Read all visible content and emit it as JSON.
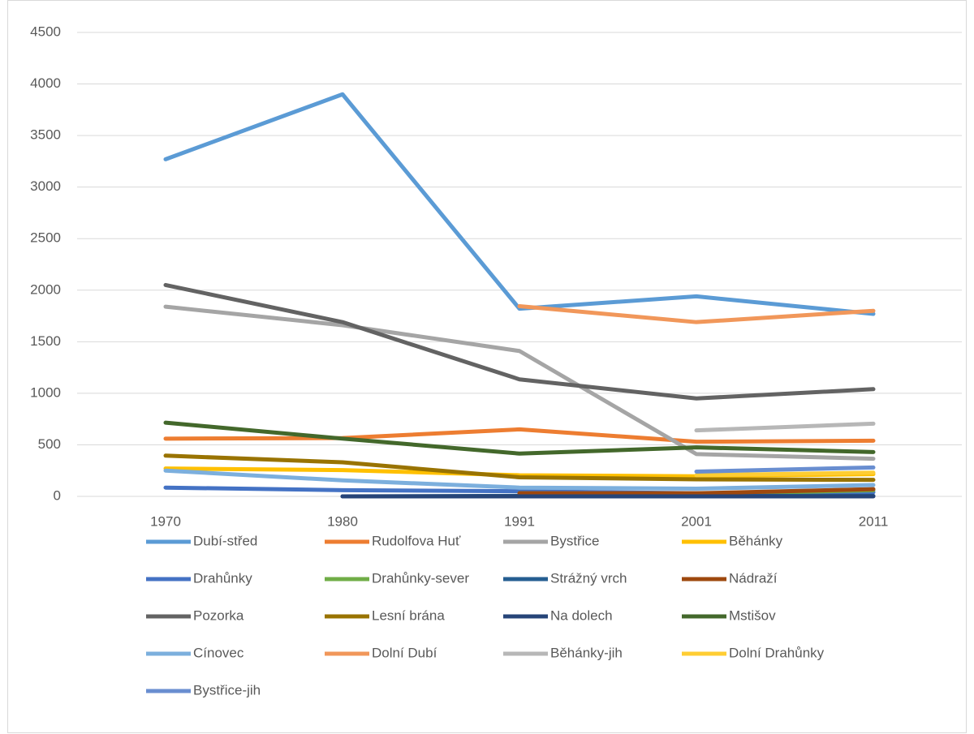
{
  "chart_data": {
    "type": "line",
    "categories": [
      "1970",
      "1980",
      "1991",
      "2001",
      "2011"
    ],
    "ylim": [
      0,
      4500
    ],
    "yticks": [
      0,
      500,
      1000,
      1500,
      2000,
      2500,
      3000,
      3500,
      4000,
      4500
    ],
    "grid": true,
    "legend": "bottom",
    "series": [
      {
        "name": "Dubí-střed",
        "color": "#5B9BD5",
        "values": [
          3270,
          3900,
          1820,
          1940,
          1770
        ]
      },
      {
        "name": "Rudolfova Huť",
        "color": "#ED7D31",
        "values": [
          560,
          565,
          650,
          530,
          540
        ]
      },
      {
        "name": "Bystřice",
        "color": "#A5A5A5",
        "values": [
          1840,
          1660,
          1410,
          410,
          365
        ]
      },
      {
        "name": "Běhánky",
        "color": "#FFC000",
        "values": [
          270,
          255,
          205,
          195,
          215
        ]
      },
      {
        "name": "Drahůnky",
        "color": "#4472C4",
        "values": [
          85,
          60,
          50,
          30,
          40
        ]
      },
      {
        "name": "Drahůnky-sever",
        "color": "#70AD47",
        "values": [
          null,
          null,
          30,
          20,
          60
        ]
      },
      {
        "name": "Strážný vrch",
        "color": "#255E91",
        "values": [
          null,
          0,
          5,
          5,
          5
        ]
      },
      {
        "name": "Nádraží",
        "color": "#9E480E",
        "values": [
          null,
          null,
          30,
          30,
          70
        ]
      },
      {
        "name": "Pozorka",
        "color": "#636363",
        "values": [
          2050,
          1690,
          1135,
          950,
          1040
        ]
      },
      {
        "name": "Lesní brána",
        "color": "#997300",
        "values": [
          395,
          330,
          185,
          165,
          160
        ]
      },
      {
        "name": "Na dolech",
        "color": "#264478",
        "values": [
          null,
          0,
          0,
          0,
          0
        ]
      },
      {
        "name": "Mstišov",
        "color": "#43682B",
        "values": [
          715,
          560,
          415,
          475,
          430
        ]
      },
      {
        "name": "Cínovec",
        "color": "#7CAFDD",
        "values": [
          250,
          155,
          85,
          75,
          110
        ]
      },
      {
        "name": "Dolní Dubí",
        "color": "#F1975A",
        "values": [
          null,
          null,
          1845,
          1690,
          1800
        ]
      },
      {
        "name": "Běhánky-jih",
        "color": "#B7B7B7",
        "values": [
          null,
          null,
          null,
          640,
          705
        ]
      },
      {
        "name": "Dolní Drahůnky",
        "color": "#FFCD33",
        "values": [
          null,
          null,
          null,
          205,
          230
        ]
      },
      {
        "name": "Bystřice-jih",
        "color": "#698ED0",
        "values": [
          null,
          null,
          null,
          240,
          280
        ]
      }
    ]
  }
}
